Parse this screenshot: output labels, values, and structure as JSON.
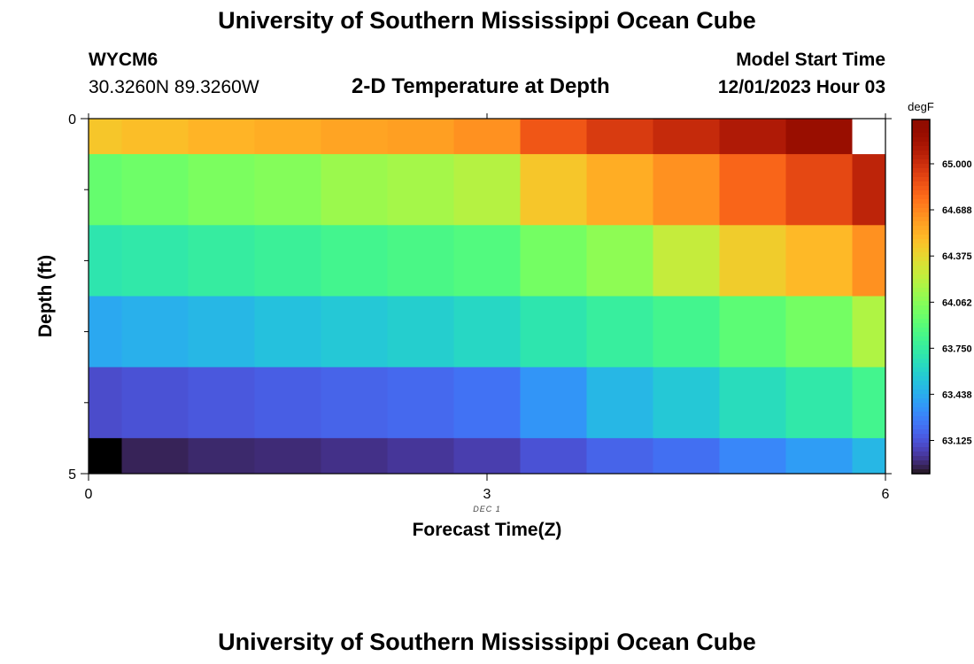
{
  "header": {
    "title": "University of Southern Mississippi Ocean Cube",
    "station_id": "WYCM6",
    "station_coords": "30.3260N  89.3260W",
    "plot_title": "2-D Temperature at Depth",
    "model_label": "Model Start Time",
    "model_time": "12/01/2023 Hour 03"
  },
  "footer": {
    "title": "University of Southern Mississippi Ocean Cube"
  },
  "chart_data": {
    "type": "heatmap",
    "title": "2-D Temperature at Depth",
    "xlabel": "Forecast Time(Z)",
    "ylabel": "Depth (ft)",
    "xlim": [
      0,
      6
    ],
    "ylim": [
      0,
      5
    ],
    "y_inverted": true,
    "x_ticks": [
      "0",
      "3",
      "6"
    ],
    "y_ticks": [
      "0",
      "5"
    ],
    "x_sublabel": "DEC 1",
    "colorbar": {
      "unit": "degF",
      "ticks": [
        "65.000",
        "64.688",
        "64.375",
        "64.062",
        "63.750",
        "63.438",
        "63.125"
      ],
      "range": [
        62.9,
        65.3
      ],
      "colormap": "turbo"
    },
    "columns_x": [
      0,
      0.5,
      1.0,
      1.5,
      2.0,
      2.5,
      3.0,
      3.5,
      4.0,
      4.5,
      5.0,
      5.5,
      6.0
    ],
    "rows_depth": [
      0,
      1,
      2,
      3,
      4,
      5
    ],
    "values": [
      [
        64.45,
        64.48,
        64.52,
        64.55,
        64.58,
        64.6,
        64.65,
        64.85,
        64.95,
        65.02,
        65.1,
        65.2,
        null
      ],
      [
        63.95,
        63.98,
        64.02,
        64.05,
        64.12,
        64.15,
        64.2,
        64.45,
        64.55,
        64.65,
        64.8,
        64.9,
        65.05
      ],
      [
        63.7,
        63.72,
        63.75,
        63.78,
        63.82,
        63.85,
        63.88,
        64.0,
        64.08,
        64.25,
        64.42,
        64.5,
        64.65
      ],
      [
        63.42,
        63.45,
        63.48,
        63.52,
        63.55,
        63.58,
        63.62,
        63.7,
        63.76,
        63.82,
        63.92,
        64.0,
        64.18
      ],
      [
        63.1,
        63.12,
        63.14,
        63.16,
        63.18,
        63.2,
        63.23,
        63.35,
        63.48,
        63.55,
        63.65,
        63.72,
        63.82
      ],
      [
        62.9,
        62.95,
        62.97,
        62.98,
        63.0,
        63.02,
        63.05,
        63.12,
        63.18,
        63.22,
        63.3,
        63.38,
        63.48
      ]
    ]
  }
}
